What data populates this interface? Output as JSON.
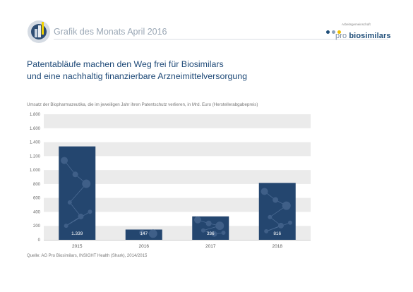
{
  "header": {
    "grafik_title": "Grafik des Monats April 2016",
    "brand_small": "Arbeitsgemeinschaft",
    "brand_pro": "pro ",
    "brand_bio": "biosimilars"
  },
  "headline": {
    "line1": "Patentabläufe machen den Weg frei für Biosimilars",
    "line2": "und eine nachhaltig finanzierbare Arzneimittelversorgung"
  },
  "source": "Quelle: AG Pro Biosimilars, INSIGHT Health (Shark), 2014/2015",
  "colors": {
    "bar": "#24466f",
    "band": "#ebebeb",
    "headline": "#1f4a78"
  },
  "chart_data": {
    "type": "bar",
    "title": "Umsatz der Biopharmazeutika, die im jeweiligen Jahr ihren Patentschutz verlieren, in Mrd. Euro (Herstellerabgabepreis)",
    "categories": [
      "2015",
      "2016",
      "2017",
      "2018"
    ],
    "values": [
      1339,
      147,
      336,
      816
    ],
    "value_labels": [
      "1.339",
      "147",
      "336",
      "816"
    ],
    "ylim": [
      0,
      1800
    ],
    "yticks": [
      0,
      200,
      400,
      600,
      800,
      1000,
      1200,
      1400,
      1600,
      1800
    ],
    "ytick_labels": [
      "0",
      "200",
      "400",
      "600",
      "800",
      "1.000",
      "1.200",
      "1.400",
      "1.600",
      "1.800"
    ],
    "grid": "alternating bands",
    "legend": "none"
  }
}
